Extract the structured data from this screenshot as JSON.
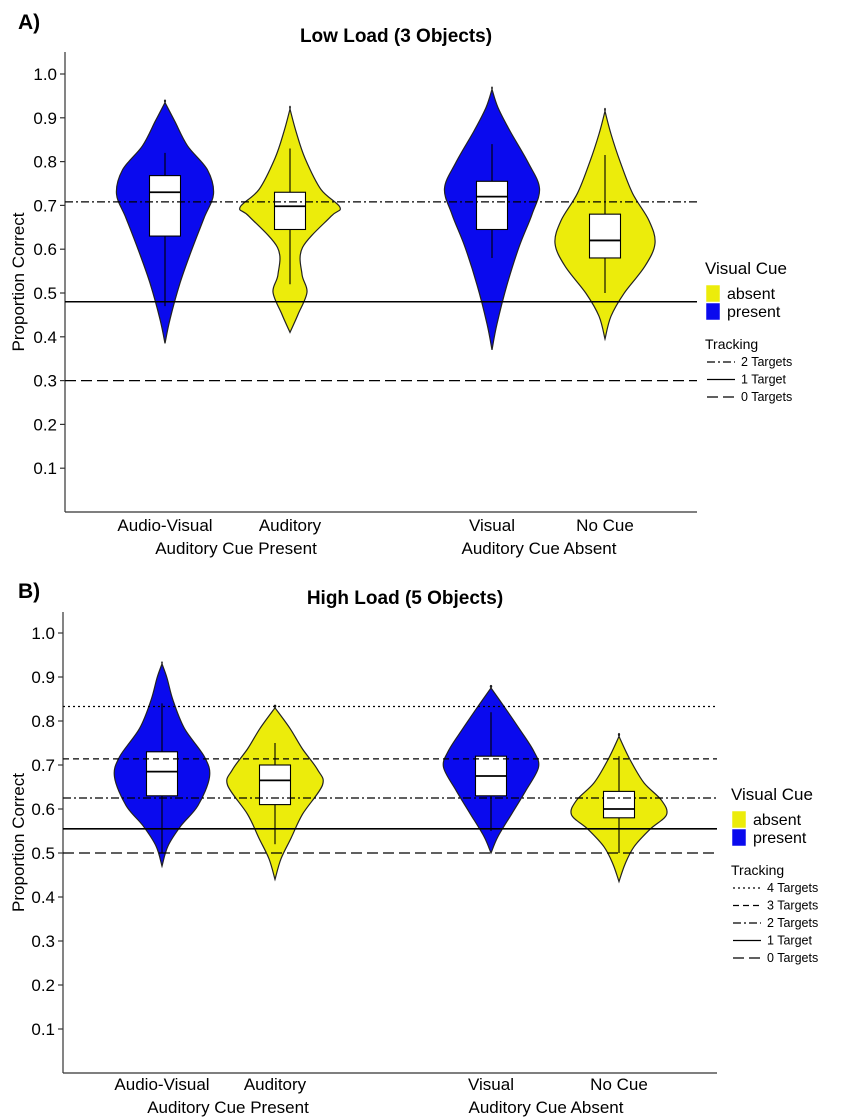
{
  "chart_data": [
    {
      "type": "violin",
      "panel_label": "A)",
      "title": "Low Load (3 Objects)",
      "ylabel": "Proportion Correct",
      "ylim": [
        0,
        1.0
      ],
      "yticks": [
        "0.1",
        "0.2",
        "0.3",
        "0.4",
        "0.5",
        "0.6",
        "0.7",
        "0.8",
        "0.9",
        "1.0"
      ],
      "categories": [
        "Audio-Visual",
        "Auditory",
        "Visual",
        "No Cue"
      ],
      "groups": [
        "Auditory Cue Present",
        "Auditory Cue Absent"
      ],
      "violins": [
        {
          "category": "Audio-Visual",
          "visual_cue": "present",
          "min": 0.385,
          "max": 0.935,
          "q1": 0.63,
          "median": 0.73,
          "q3": 0.768,
          "whisker_low": 0.47,
          "whisker_high": 0.82
        },
        {
          "category": "Auditory",
          "visual_cue": "absent",
          "min": 0.41,
          "max": 0.92,
          "q1": 0.645,
          "median": 0.698,
          "q3": 0.73,
          "whisker_low": 0.52,
          "whisker_high": 0.83
        },
        {
          "category": "Visual",
          "visual_cue": "present",
          "min": 0.37,
          "max": 0.965,
          "q1": 0.645,
          "median": 0.72,
          "q3": 0.755,
          "whisker_low": 0.58,
          "whisker_high": 0.84
        },
        {
          "category": "No Cue",
          "visual_cue": "absent",
          "min": 0.395,
          "max": 0.915,
          "q1": 0.58,
          "median": 0.62,
          "q3": 0.68,
          "whisker_low": 0.5,
          "whisker_high": 0.815
        }
      ],
      "reference_lines": [
        {
          "label": "2 Targets",
          "value": 0.708,
          "style": "dashdot"
        },
        {
          "label": "1 Target",
          "value": 0.48,
          "style": "solid"
        },
        {
          "label": "0 Targets",
          "value": 0.3,
          "style": "longdash"
        }
      ],
      "legend": {
        "title": "Visual Cue",
        "items": [
          {
            "label": "absent",
            "color": "#ecec0b"
          },
          {
            "label": "present",
            "color": "#0a0aee"
          }
        ],
        "tracking_title": "Tracking"
      }
    },
    {
      "type": "violin",
      "panel_label": "B)",
      "title": "High Load (5 Objects)",
      "ylabel": "Proportion Correct",
      "ylim": [
        0,
        1.0
      ],
      "yticks": [
        "0.1",
        "0.2",
        "0.3",
        "0.4",
        "0.5",
        "0.6",
        "0.7",
        "0.8",
        "0.9",
        "1.0"
      ],
      "categories": [
        "Audio-Visual",
        "Auditory",
        "Visual",
        "No Cue"
      ],
      "groups": [
        "Auditory Cue Present",
        "Auditory Cue Absent"
      ],
      "violins": [
        {
          "category": "Audio-Visual",
          "visual_cue": "present",
          "min": 0.47,
          "max": 0.93,
          "q1": 0.63,
          "median": 0.685,
          "q3": 0.73,
          "whisker_low": 0.5,
          "whisker_high": 0.84
        },
        {
          "category": "Auditory",
          "visual_cue": "absent",
          "min": 0.44,
          "max": 0.83,
          "q1": 0.61,
          "median": 0.665,
          "q3": 0.7,
          "whisker_low": 0.52,
          "whisker_high": 0.75
        },
        {
          "category": "Visual",
          "visual_cue": "present",
          "min": 0.5,
          "max": 0.875,
          "q1": 0.63,
          "median": 0.675,
          "q3": 0.72,
          "whisker_low": 0.55,
          "whisker_high": 0.82
        },
        {
          "category": "No Cue",
          "visual_cue": "absent",
          "min": 0.435,
          "max": 0.765,
          "q1": 0.58,
          "median": 0.6,
          "q3": 0.64,
          "whisker_low": 0.5,
          "whisker_high": 0.72
        }
      ],
      "reference_lines": [
        {
          "label": "4 Targets",
          "value": 0.833,
          "style": "dotted"
        },
        {
          "label": "3 Targets",
          "value": 0.714,
          "style": "dashed"
        },
        {
          "label": "2 Targets",
          "value": 0.625,
          "style": "dashdot"
        },
        {
          "label": "1 Target",
          "value": 0.555,
          "style": "solid"
        },
        {
          "label": "0 Targets",
          "value": 0.5,
          "style": "longdash"
        }
      ],
      "legend": {
        "title": "Visual Cue",
        "items": [
          {
            "label": "absent",
            "color": "#ecec0b"
          },
          {
            "label": "present",
            "color": "#0a0aee"
          }
        ],
        "tracking_title": "Tracking"
      }
    }
  ]
}
